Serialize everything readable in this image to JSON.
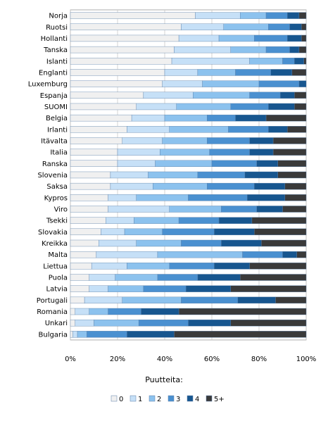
{
  "chart_data": {
    "type": "bar",
    "orientation": "horizontal",
    "stacked": true,
    "percent": true,
    "legend_title": "Puutteita:",
    "legend_position": "bottom",
    "xlim": [
      0,
      100
    ],
    "x_ticks": [
      "0%",
      "20%",
      "40%",
      "60%",
      "80%",
      "100%"
    ],
    "grid": true,
    "categories": [
      "Norja",
      "Ruotsi",
      "Hollanti",
      "Tanska",
      "Islanti",
      "Englanti",
      "Luxemburg",
      "Espanja",
      "SUOMI",
      "Belgia",
      "Irlanti",
      "Itävalta",
      "Italia",
      "Ranska",
      "Slovenia",
      "Saksa",
      "Kypros",
      "Viro",
      "Tsekki",
      "Slovakia",
      "Kreikka",
      "Malta",
      "Liettua",
      "Puola",
      "Latvia",
      "Portugali",
      "Romania",
      "Unkari",
      "Bulgaria"
    ],
    "series": [
      {
        "name": "0",
        "color": "#f0f0f0",
        "values": [
          53,
          47,
          46,
          44,
          43,
          40,
          39,
          31,
          28,
          26,
          24,
          22,
          20,
          20,
          17,
          17,
          16,
          16,
          15,
          13,
          12,
          11,
          9,
          8,
          8,
          6,
          2,
          2,
          1
        ]
      },
      {
        "name": "1",
        "color": "#c6e0f7",
        "values": [
          19,
          18,
          17,
          24,
          33,
          14,
          17,
          21,
          17,
          14,
          18,
          17,
          18,
          16,
          16,
          18,
          12,
          26,
          12,
          10,
          16,
          26,
          15,
          11,
          8,
          16,
          6,
          8,
          2
        ]
      },
      {
        "name": "2",
        "color": "#8cc2ee",
        "values": [
          11,
          19,
          15,
          15,
          14,
          16,
          24,
          24,
          23,
          18,
          25,
          19,
          21,
          24,
          21,
          23,
          22,
          22,
          19,
          16,
          19,
          36,
          18,
          18,
          15,
          25,
          8,
          19,
          4
        ]
      },
      {
        "name": "3",
        "color": "#4a90d0",
        "values": [
          9,
          9,
          14,
          10,
          5,
          15,
          17,
          13,
          16,
          12,
          17,
          18,
          17,
          19,
          20,
          20,
          25,
          15,
          17,
          22,
          17,
          17,
          19,
          17,
          18,
          24,
          14,
          21,
          17
        ]
      },
      {
        "name": "4",
        "color": "#17568f",
        "values": [
          5,
          5,
          6,
          4,
          4,
          9,
          3,
          6,
          11,
          13,
          8,
          10,
          10,
          9,
          14,
          13,
          16,
          11,
          14,
          17,
          17,
          6,
          15,
          18,
          19,
          16,
          16,
          18,
          20
        ]
      },
      {
        "name": "5+",
        "color": "#3a3a3a",
        "values": [
          3,
          2,
          2,
          3,
          1,
          6,
          0,
          5,
          5,
          17,
          8,
          14,
          14,
          12,
          12,
          9,
          9,
          10,
          23,
          22,
          19,
          4,
          24,
          28,
          32,
          13,
          54,
          32,
          56
        ]
      }
    ]
  }
}
